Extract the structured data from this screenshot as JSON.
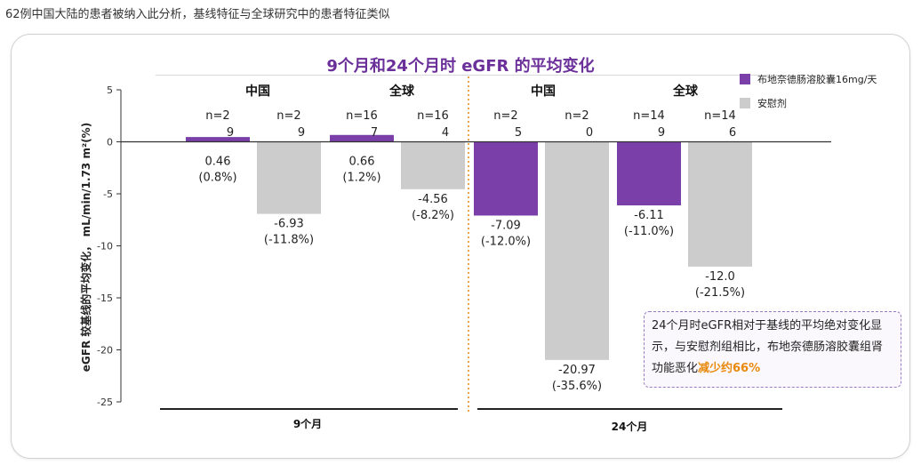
{
  "caption": "62例中国大陆的患者被纳入此分析，基线特征与全球研究中的患者特征类似",
  "legend": {
    "drug": "布地奈德肠溶胶囊16mg/天",
    "placebo": "安慰剂"
  },
  "colors": {
    "drug": "#7a3fa8",
    "placebo": "#cccccc",
    "title": "#6b2f9a",
    "highlight": "#e8890c"
  },
  "note": {
    "text": "24个月时eGFR相对于基线的平均绝对变化显示，与安慰剂组相比，布地奈德肠溶胶囊组肾功能恶化",
    "highlight": "减少约66%"
  },
  "chart_data": {
    "type": "bar",
    "title": "9个月和24个月时 eGFR 的平均变化",
    "ylabel": "eGFR 较基线的平均变化， mL/min/1.73 m²(%)",
    "ylim": [
      -25,
      5
    ],
    "yticks": [
      "5",
      "0",
      "-5",
      "-10",
      "-15",
      "-20",
      "-25"
    ],
    "tick_values": [
      5,
      0,
      -5,
      -10,
      -15,
      -20,
      -25
    ],
    "timepoints": [
      "9个月",
      "24个月"
    ],
    "regions": [
      "中国",
      "全球",
      "中国",
      "全球"
    ],
    "bars": [
      {
        "series": "drug",
        "value": 0.46,
        "n": "n=29",
        "label": "0.46",
        "pct": "(0.8%)"
      },
      {
        "series": "placebo",
        "value": -6.93,
        "n": "n=29",
        "label": "-6.93",
        "pct": "(-11.8%)"
      },
      {
        "series": "drug",
        "value": 0.66,
        "n": "n=167",
        "label": "0.66",
        "pct": "(1.2%)"
      },
      {
        "series": "placebo",
        "value": -4.56,
        "n": "n=164",
        "label": "-4.56",
        "pct": "(-8.2%)"
      },
      {
        "series": "drug",
        "value": -7.09,
        "n": "n=25",
        "label": "-7.09",
        "pct": "(-12.0%)"
      },
      {
        "series": "placebo",
        "value": -20.97,
        "n": "n=20",
        "label": "-20.97",
        "pct": "(-35.6%)"
      },
      {
        "series": "drug",
        "value": -6.11,
        "n": "n=149",
        "label": "-6.11",
        "pct": "(-11.0%)"
      },
      {
        "series": "placebo",
        "value": -12.0,
        "n": "n=146",
        "label": "-12.0",
        "pct": "(-21.5%)"
      }
    ]
  }
}
